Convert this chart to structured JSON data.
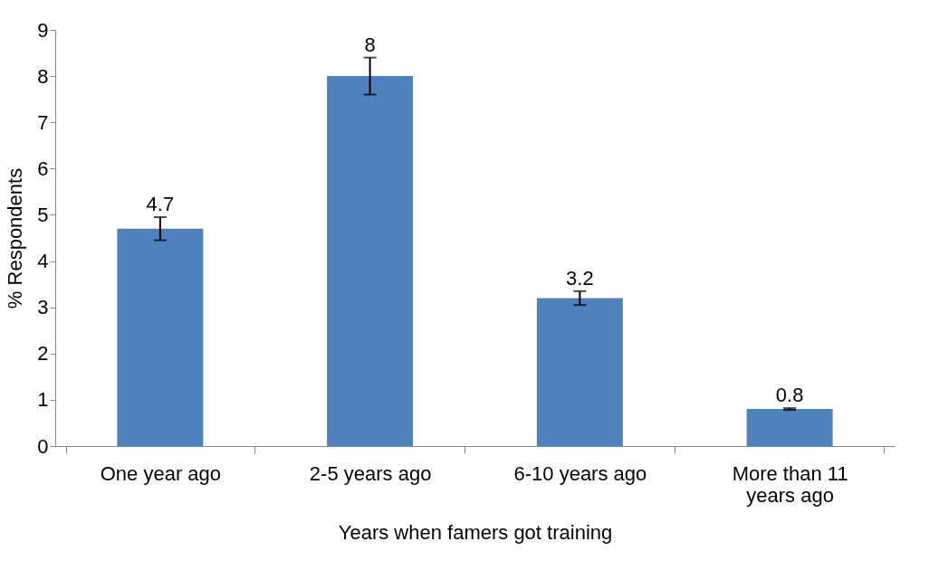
{
  "chart_data": {
    "type": "bar",
    "xlabel": "Years when  famers got training",
    "ylabel": "% Respondents",
    "categories": [
      "One year ago",
      "2-5 years ago",
      "6-10 years ago",
      "More than 11 years ago"
    ],
    "values": [
      4.7,
      8,
      3.2,
      0.8
    ],
    "errors": [
      0.25,
      0.4,
      0.15,
      0.02
    ],
    "color": "#4f81bd",
    "ylim": [
      0,
      9
    ],
    "yticks": [
      0,
      1,
      2,
      3,
      4,
      5,
      6,
      7,
      8,
      9
    ],
    "grid": false,
    "data_labels": true
  }
}
